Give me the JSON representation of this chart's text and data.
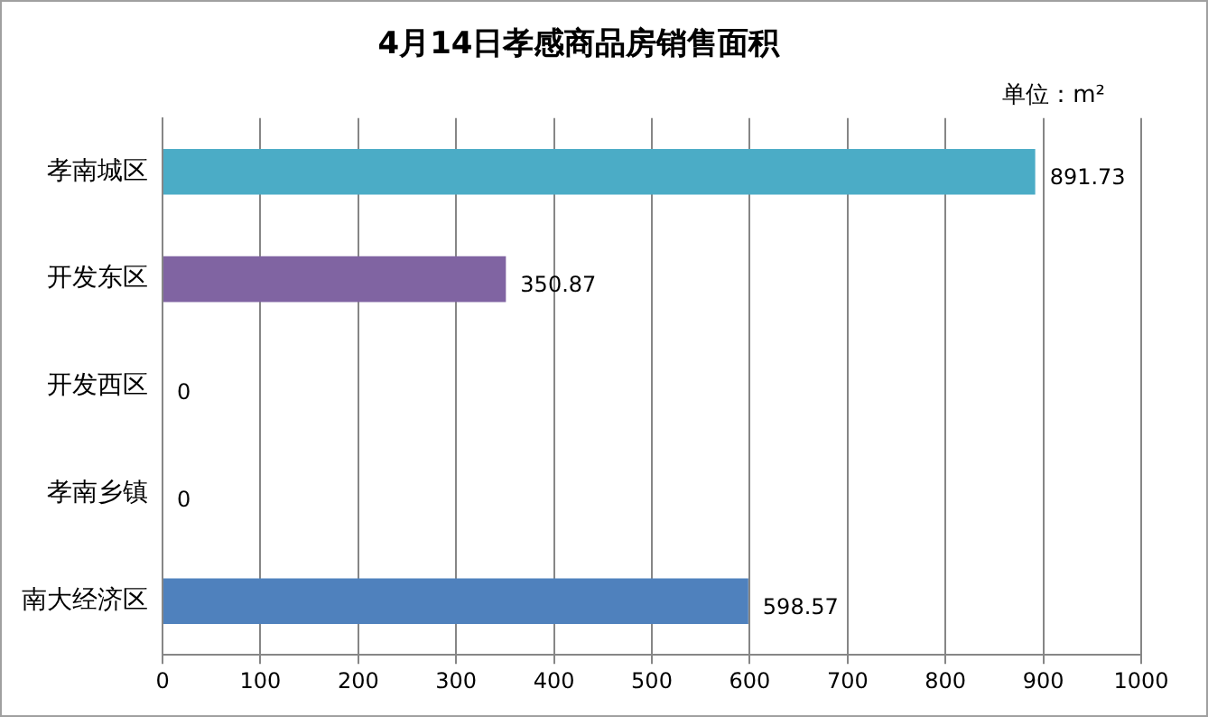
{
  "chart_data": {
    "type": "bar",
    "orientation": "horizontal",
    "title": "4月14日孝感商品房销售面积",
    "annotations": [
      "单位：m²"
    ],
    "categories": [
      "孝南城区",
      "开发东区",
      "开发西区",
      "孝南乡镇",
      "南大经济区"
    ],
    "values": [
      891.73,
      350.87,
      0,
      0,
      598.57
    ],
    "colors": [
      "#4bacc6",
      "#8064a2",
      "#9bbb59",
      "#c0504d",
      "#4f81bd"
    ],
    "xlim": [
      0,
      1000
    ],
    "xticks": [
      0,
      100,
      200,
      300,
      400,
      500,
      600,
      700,
      800,
      900,
      1000
    ],
    "grid": "x",
    "data_labels": true,
    "legend": false
  }
}
